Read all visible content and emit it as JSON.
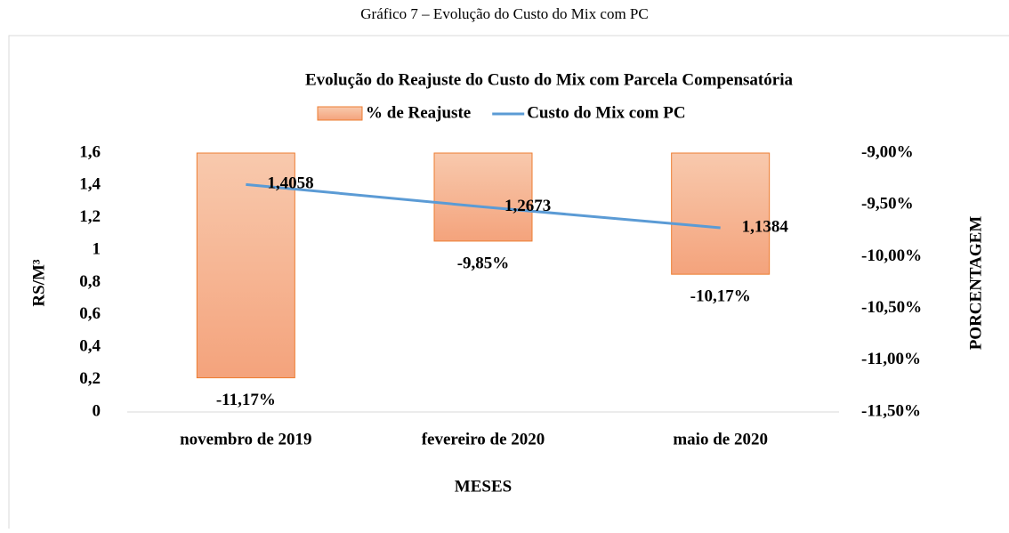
{
  "chart_data": {
    "type": "bar-line",
    "caption": "Gráfico 7 – Evolução do Custo do Mix com PC",
    "title": "Evolução do Reajuste do Custo do Mix com Parcela Compensatória",
    "x_label": "MESES",
    "y_label": "RS/M³",
    "y2_label": "PORCENTAGEM",
    "categories": [
      "novembro de 2019",
      "fevereiro de 2020",
      "maio de 2020"
    ],
    "series": [
      {
        "name": "% de Reajuste",
        "type": "bar",
        "axis": "y2",
        "color": "#ed7d31",
        "values": [
          -11.17,
          -9.85,
          -10.17
        ],
        "value_labels": [
          "-11,17%",
          "-9,85%",
          "-10,17%"
        ]
      },
      {
        "name": "Custo do Mix com PC",
        "type": "line",
        "axis": "y",
        "color": "#5b9bd5",
        "values": [
          1.4058,
          1.2673,
          1.1384
        ],
        "value_labels": [
          "1,4058",
          "1,2673",
          "1,1384"
        ]
      }
    ],
    "ylim": [
      0,
      1.6
    ],
    "yticks": [
      0,
      {
        "value": 0.2,
        "label": "0,2"
      },
      {
        "value": 0.4,
        "label": "0,4"
      },
      {
        "value": 0.6,
        "label": "0,6"
      },
      {
        "value": 0.8,
        "label": "0,8"
      },
      1,
      {
        "value": 1.2,
        "label": "1,2"
      },
      {
        "value": 1.4,
        "label": "1,4"
      },
      {
        "value": 1.6,
        "label": "1,6"
      }
    ],
    "y2lim": [
      -11.5,
      -9
    ],
    "y2ticks": [
      {
        "value": -11.5,
        "label": "-11,50%"
      },
      {
        "value": -11,
        "label": "-11,00%"
      },
      {
        "value": -10.5,
        "label": "-10,50%"
      },
      {
        "value": -10,
        "label": "-10,00%"
      },
      {
        "value": -9.5,
        "label": "-9,50%"
      },
      {
        "value": -9,
        "label": "-9,00%"
      }
    ],
    "legend": "top",
    "grid": false
  }
}
